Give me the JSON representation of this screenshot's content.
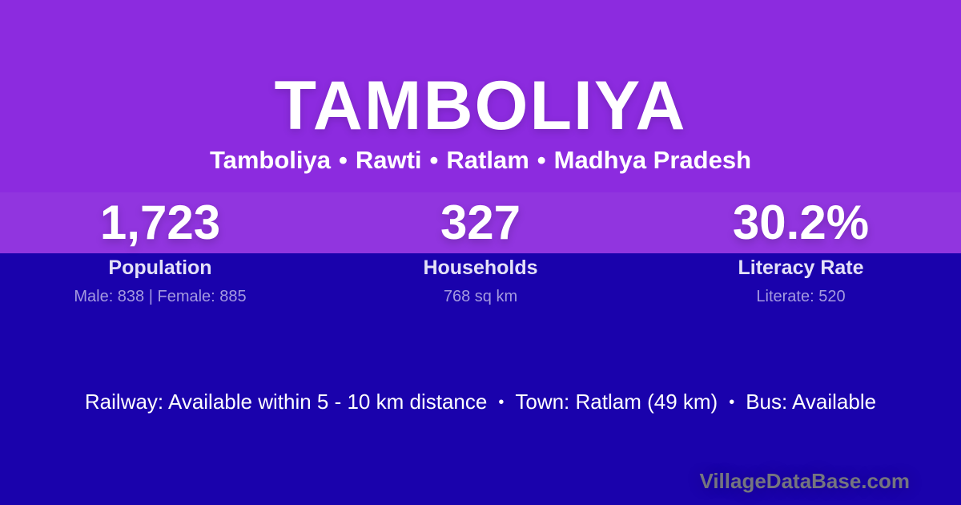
{
  "card": {
    "title": "TAMBOLIYA",
    "breadcrumb": {
      "items": [
        "Tamboliya",
        "Rawti",
        "Ratlam",
        "Madhya Pradesh"
      ],
      "separator": "•"
    },
    "stats": [
      {
        "value": "1,723",
        "label": "Population",
        "detail": "Male: 838 | Female: 885"
      },
      {
        "value": "327",
        "label": "Households",
        "detail": "768 sq km"
      },
      {
        "value": "30.2%",
        "label": "Literacy Rate",
        "detail": "Literate: 520"
      }
    ],
    "info": {
      "items": [
        "Railway: Available within 5 - 10 km distance",
        "Town: Ratlam (49 km)",
        "Bus: Available"
      ],
      "separator": "•"
    },
    "watermark": "VillageDataBase.com"
  },
  "colors": {
    "header_purple": "#8C2BDF",
    "stats_band_purple": "#9135DF",
    "body_indigo": "#1A02AC",
    "stat_label": "#E4E1F7",
    "stat_detail": "#A49ADF",
    "watermark_gray": "#75757F",
    "text_white": "#FFFFFF"
  }
}
